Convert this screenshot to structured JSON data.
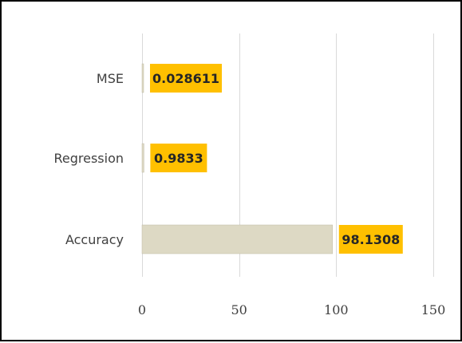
{
  "chart_data": {
    "type": "bar",
    "orientation": "horizontal",
    "categories": [
      "MSE",
      "Regression",
      "Accuracy"
    ],
    "values": [
      0.028611,
      0.9833,
      98.1308
    ],
    "data_labels": [
      "0.028611",
      "0.9833",
      "98.1308"
    ],
    "xlim": [
      0,
      150
    ],
    "x_ticks": [
      0,
      50,
      100,
      150
    ],
    "x_tick_labels": [
      "0",
      "50",
      "100",
      "150"
    ],
    "grid": "vertical",
    "legend": "none"
  },
  "colors": {
    "bar_fill": "#ddd9c4",
    "bar_stroke": "#bfbaa6",
    "label_fill": "#ffc000",
    "gridline": "#d9d9d9",
    "frame": "#000000"
  }
}
